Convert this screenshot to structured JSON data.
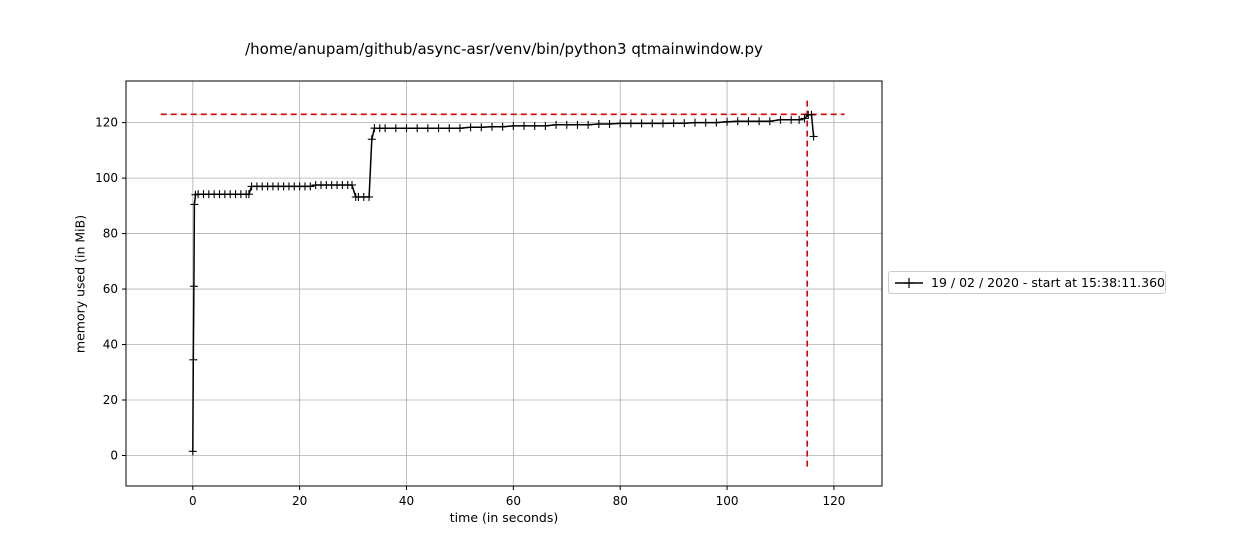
{
  "chart_data": {
    "type": "line",
    "title": "/home/anupam/github/async-asr/venv/bin/python3 qtmainwindow.py",
    "xlabel": "time (in seconds)",
    "ylabel": "memory used (in MiB)",
    "xlim": [
      -12.5,
      129
    ],
    "ylim": [
      -11,
      135
    ],
    "xticks": [
      0,
      20,
      40,
      60,
      80,
      100,
      120
    ],
    "yticks": [
      0,
      20,
      40,
      60,
      80,
      100,
      120
    ],
    "grid": true,
    "legend_position": "right",
    "series": [
      {
        "name": "19 / 02 / 2020 - start at 15:38:11.360",
        "color": "#000000",
        "marker": "+",
        "x": [
          0.0,
          0.1,
          0.2,
          0.3,
          0.5,
          1,
          2,
          3,
          4,
          5,
          6,
          7,
          8,
          9,
          10,
          10.5,
          11,
          12,
          13,
          14,
          15,
          16,
          17,
          18,
          19,
          20,
          21,
          22,
          23,
          24,
          25,
          26,
          27,
          28,
          29,
          29.8,
          30.5,
          31,
          32,
          33,
          33.5,
          34,
          35,
          36,
          38,
          40,
          42,
          44,
          46,
          48,
          50,
          52,
          54,
          56,
          58,
          60,
          62,
          64,
          66,
          68,
          70,
          72,
          74,
          76,
          78,
          80,
          82,
          84,
          86,
          88,
          90,
          92,
          94,
          96,
          98,
          100,
          102,
          104,
          106,
          108,
          110,
          112,
          113.5,
          114.5,
          115.2,
          115.8,
          116.2
        ],
        "y": [
          1.5,
          34.5,
          61,
          90.5,
          94,
          94.2,
          94.2,
          94.2,
          94.2,
          94.2,
          94.2,
          94.2,
          94.2,
          94.2,
          94.2,
          94.2,
          97,
          97,
          97,
          97,
          97,
          97,
          97,
          97,
          97,
          97,
          97,
          97,
          97.5,
          97.5,
          97.5,
          97.5,
          97.5,
          97.5,
          97.5,
          97.5,
          93.2,
          93.2,
          93.2,
          93.2,
          114,
          118,
          118,
          118,
          118,
          118,
          118,
          118,
          118,
          118,
          118,
          118.3,
          118.3,
          118.5,
          118.5,
          118.8,
          118.8,
          118.8,
          118.8,
          119.2,
          119.2,
          119.2,
          119.2,
          119.5,
          119.5,
          119.7,
          119.7,
          119.7,
          119.7,
          119.7,
          119.8,
          119.8,
          120,
          120,
          120,
          120.3,
          120.5,
          120.5,
          120.5,
          120.5,
          121,
          121,
          121,
          121.5,
          122.8,
          122.8,
          115
        ]
      }
    ],
    "annotations": [
      {
        "type": "hline",
        "y": 123,
        "x_from": -6,
        "x_to": 122,
        "style": "dashed",
        "color": "#dd0000"
      },
      {
        "type": "vline",
        "x": 115,
        "y_from": -4,
        "y_to": 129,
        "style": "dashed",
        "color": "#dd0000"
      }
    ]
  }
}
